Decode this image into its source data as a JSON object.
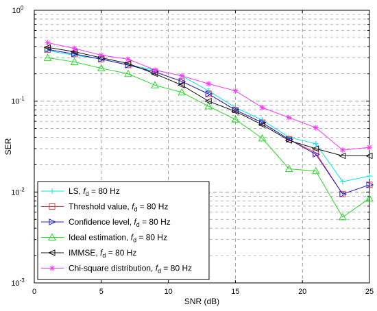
{
  "chart_data": {
    "type": "line",
    "xlabel": "SNR (dB)",
    "ylabel": "SER",
    "xlim": [
      0,
      25
    ],
    "ylim": [
      0.001,
      1
    ],
    "yscale": "log",
    "xticks": [
      "0",
      "5",
      "10",
      "15",
      "20",
      "25"
    ],
    "grid": true,
    "legend_position": "bottom-left",
    "x": [
      1,
      3,
      5,
      7,
      9,
      11,
      13,
      15,
      17,
      19,
      21,
      23,
      25
    ],
    "series": [
      {
        "name_main": "LS, ",
        "name_sub": "d",
        "name_tail": " = 80 Hz",
        "color": "#00e5e5",
        "marker": "plus",
        "values": [
          0.36,
          0.32,
          0.29,
          0.25,
          0.22,
          0.19,
          0.13,
          0.085,
          0.062,
          0.04,
          0.034,
          0.013,
          0.015
        ]
      },
      {
        "name_main": "Threshold value, ",
        "name_sub": "d",
        "name_tail": " = 80 Hz",
        "color": "#ff3333",
        "marker": "square",
        "values": [
          0.37,
          0.33,
          0.29,
          0.25,
          0.21,
          0.165,
          0.12,
          0.08,
          0.058,
          0.038,
          0.027,
          0.0095,
          0.012
        ]
      },
      {
        "name_main": "Confidence level, ",
        "name_sub": "d",
        "name_tail": " = 80 Hz",
        "color": "#2222cc",
        "marker": "triangle-right",
        "values": [
          0.37,
          0.33,
          0.29,
          0.25,
          0.21,
          0.165,
          0.12,
          0.08,
          0.058,
          0.038,
          0.026,
          0.0095,
          0.012
        ]
      },
      {
        "name_main": "Ideal estimation, ",
        "name_sub": "d",
        "name_tail": " = 80 Hz",
        "color": "#22dd22",
        "marker": "triangle-up",
        "values": [
          0.3,
          0.27,
          0.23,
          0.2,
          0.15,
          0.125,
          0.088,
          0.063,
          0.039,
          0.018,
          0.017,
          0.0053,
          0.0085
        ]
      },
      {
        "name_main": "IMMSE, ",
        "name_sub": "d",
        "name_tail": " = 80 Hz",
        "color": "#111111",
        "marker": "triangle-left",
        "values": [
          0.39,
          0.35,
          0.3,
          0.26,
          0.2,
          0.15,
          0.1,
          0.077,
          0.055,
          0.037,
          0.03,
          0.025,
          0.025
        ]
      },
      {
        "name_main": "Chi-square distribution, ",
        "name_sub": "d",
        "name_tail": " = 80 Hz",
        "color": "#ff33ff",
        "marker": "star",
        "values": [
          0.44,
          0.38,
          0.32,
          0.29,
          0.22,
          0.19,
          0.155,
          0.13,
          0.085,
          0.066,
          0.051,
          0.029,
          0.031
        ]
      }
    ]
  }
}
